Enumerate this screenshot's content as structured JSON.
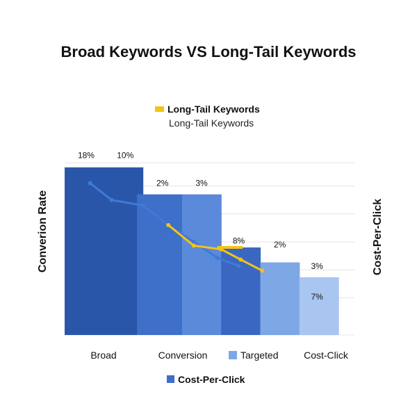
{
  "chart_data": {
    "type": "bar",
    "title": "Broad Keywords VS Long-Tail Keywords",
    "legend_top": {
      "label": "Long-Tail Keywords",
      "sublabel": "Long-Tail Keywords",
      "color": "#f5c316"
    },
    "legend_bottom": {
      "label": "Cost-Per-Click",
      "color": "#3e6fc9"
    },
    "ylabel": "Converion Rate",
    "y2label": "Cost-Per-Click",
    "ylim": [
      0,
      20
    ],
    "categories": [
      "Broad",
      "Conversion",
      "Targeted",
      "Cost-Click"
    ],
    "bar_segments": [
      {
        "value": 18,
        "color": "#2a56aa"
      },
      {
        "value": 18,
        "color": "#2a56aa"
      },
      {
        "value": 15.1,
        "color": "#3e6fc9"
      },
      {
        "value": 15.1,
        "color": "#5a8ad9"
      },
      {
        "value": 9.4,
        "color": "#3a67c2"
      },
      {
        "value": 7.8,
        "color": "#7ea7e6"
      },
      {
        "value": 6.2,
        "color": "#a9c6f0"
      }
    ],
    "data_labels": [
      "18%",
      "10%",
      "2%",
      "3%",
      "8%",
      "2%",
      "3%",
      "7%"
    ],
    "series": [
      {
        "name": "Cost-Per-Click",
        "color": "#3e7ad6",
        "points": [
          [
            0.65,
            16.3
          ],
          [
            1.2,
            14.5
          ],
          [
            2.0,
            13.9
          ],
          [
            2.65,
            11.8
          ],
          [
            3.3,
            10.0
          ],
          [
            3.9,
            8.3
          ],
          [
            4.45,
            7.4
          ]
        ]
      },
      {
        "name": "Long-Tail Keywords",
        "color": "#f5c316",
        "points": [
          [
            2.65,
            11.8
          ],
          [
            3.3,
            9.6
          ],
          [
            4.0,
            9.2
          ],
          [
            4.5,
            8.1
          ],
          [
            5.05,
            6.9
          ]
        ]
      }
    ],
    "marker_segment": {
      "x": [
        3.9,
        4.55
      ],
      "y": 9.4,
      "color": "#f5c316"
    }
  }
}
